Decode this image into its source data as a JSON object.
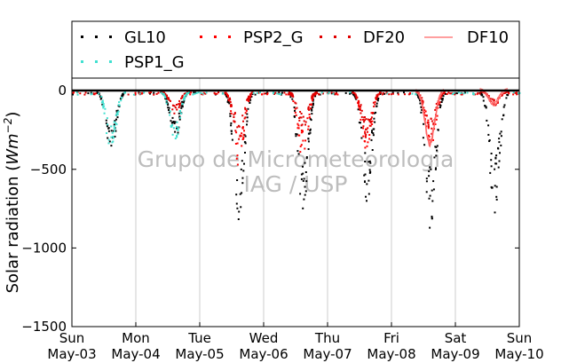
{
  "chart_data": {
    "type": "scatter",
    "ylabel": "Solar radiation (W m⁻²)",
    "ylabel_plain": "Solar radiation (",
    "ylabel_unit": "Wm",
    "ylabel_exp": "−2",
    "ylabel_close": ")",
    "ylim": [
      -1500,
      80
    ],
    "yticks": [
      0,
      -500,
      -1000,
      -1500
    ],
    "ytick_labels": [
      "0",
      "−500",
      "−1000",
      "−1500"
    ],
    "x_days": [
      "May-03",
      "May-04",
      "May-05",
      "May-06",
      "May-07",
      "May-08",
      "May-09",
      "May-10"
    ],
    "x_weekdays": [
      "Sun",
      "Mon",
      "Tue",
      "Wed",
      "Thu",
      "Fri",
      "Sat",
      "Sun"
    ],
    "grid": "vertical",
    "legend_placement": "top",
    "watermark": [
      "Grupo de Micrometeorologia",
      "IAG / USP"
    ],
    "series": [
      {
        "name": "GL10",
        "style": "dots",
        "color": "#000000",
        "daily_min": [
          -400,
          -320,
          -830,
          -790,
          -740,
          -890,
          -780
        ]
      },
      {
        "name": "PSP2_G",
        "style": "dots",
        "color": "#ff0000",
        "daily_min": [
          null,
          null,
          -480,
          -450,
          -380,
          -370,
          null
        ]
      },
      {
        "name": "DF20",
        "style": "dots",
        "color": "#e00000",
        "daily_min": [
          null,
          -150,
          -330,
          -250,
          -310,
          -280,
          -90
        ]
      },
      {
        "name": "DF10",
        "style": "line",
        "color": "#ff6666",
        "daily_min": [
          null,
          null,
          null,
          null,
          null,
          -360,
          -100
        ]
      },
      {
        "name": "PSP1_G",
        "style": "dots",
        "color": "#40e0d0",
        "daily_min": [
          -400,
          -320,
          null,
          null,
          null,
          null,
          null
        ]
      }
    ]
  }
}
